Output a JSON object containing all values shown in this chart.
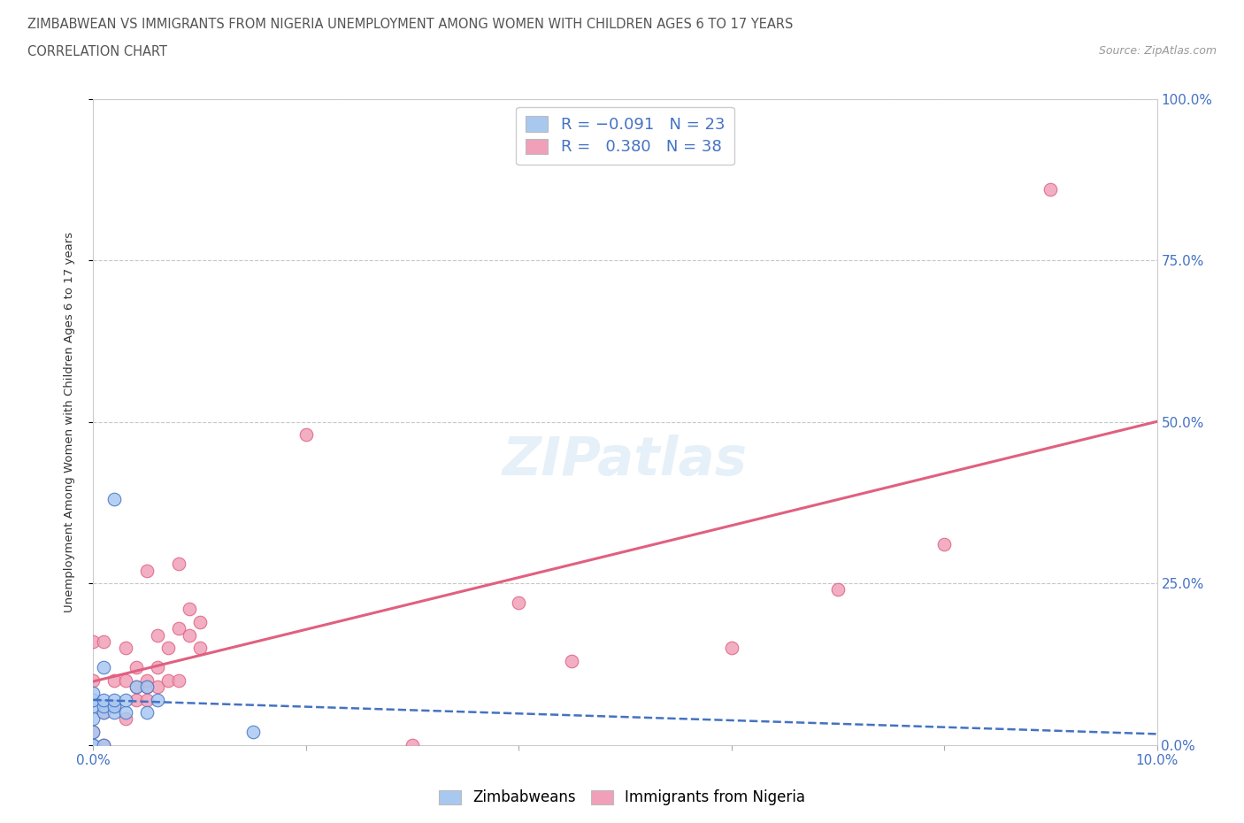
{
  "title_line1": "ZIMBABWEAN VS IMMIGRANTS FROM NIGERIA UNEMPLOYMENT AMONG WOMEN WITH CHILDREN AGES 6 TO 17 YEARS",
  "title_line2": "CORRELATION CHART",
  "source_text": "Source: ZipAtlas.com",
  "ylabel": "Unemployment Among Women with Children Ages 6 to 17 years",
  "xlim": [
    0.0,
    0.1
  ],
  "ylim": [
    0.0,
    1.0
  ],
  "watermark": "ZIPatlas",
  "zimbabwe_color": "#a8c8f0",
  "nigeria_color": "#f0a0b8",
  "zimbabwe_line_color": "#4472c4",
  "nigeria_line_color": "#e06080",
  "grid_color": "#c8c8c8",
  "title_color": "#555555",
  "axis_label_color": "#4472c4",
  "zimbabwe_x": [
    0.0,
    0.0,
    0.0,
    0.0,
    0.0,
    0.0,
    0.0,
    0.001,
    0.001,
    0.001,
    0.001,
    0.001,
    0.002,
    0.002,
    0.002,
    0.002,
    0.003,
    0.003,
    0.004,
    0.005,
    0.005,
    0.006,
    0.015
  ],
  "zimbabwe_y": [
    0.0,
    0.0,
    0.02,
    0.04,
    0.06,
    0.07,
    0.08,
    0.0,
    0.05,
    0.06,
    0.07,
    0.12,
    0.05,
    0.06,
    0.07,
    0.38,
    0.05,
    0.07,
    0.09,
    0.05,
    0.09,
    0.07,
    0.02
  ],
  "nigeria_x": [
    0.0,
    0.0,
    0.0,
    0.001,
    0.001,
    0.001,
    0.002,
    0.002,
    0.003,
    0.003,
    0.003,
    0.004,
    0.004,
    0.004,
    0.005,
    0.005,
    0.005,
    0.005,
    0.006,
    0.006,
    0.006,
    0.007,
    0.007,
    0.008,
    0.008,
    0.008,
    0.009,
    0.009,
    0.01,
    0.01,
    0.02,
    0.03,
    0.04,
    0.045,
    0.06,
    0.07,
    0.08,
    0.09
  ],
  "nigeria_y": [
    0.02,
    0.1,
    0.16,
    0.0,
    0.05,
    0.16,
    0.06,
    0.1,
    0.04,
    0.1,
    0.15,
    0.07,
    0.09,
    0.12,
    0.07,
    0.09,
    0.1,
    0.27,
    0.09,
    0.12,
    0.17,
    0.1,
    0.15,
    0.1,
    0.18,
    0.28,
    0.17,
    0.21,
    0.15,
    0.19,
    0.48,
    0.0,
    0.22,
    0.13,
    0.15,
    0.24,
    0.31,
    0.86
  ]
}
